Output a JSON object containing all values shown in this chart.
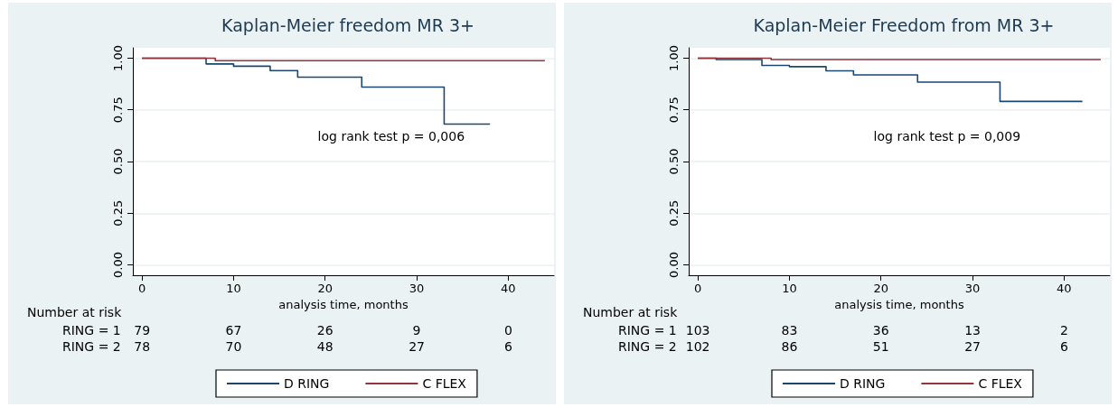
{
  "chart_data": [
    {
      "type": "step",
      "title": "Kaplan-Meier freedom MR 3+",
      "xlabel": "analysis time, months",
      "xlim": [
        -1,
        45
      ],
      "xticks": [
        0,
        10,
        20,
        30,
        40
      ],
      "ylim": [
        -0.05,
        1.05
      ],
      "yticks": [
        {
          "value": 0,
          "label": "0.00"
        },
        {
          "value": 0.25,
          "label": "0.25"
        },
        {
          "value": 0.5,
          "label": "0.50"
        },
        {
          "value": 0.75,
          "label": "0.75"
        },
        {
          "value": 1,
          "label": "1.00"
        }
      ],
      "grid": "y",
      "legend": "bottom",
      "marker": "none",
      "line_style": "solid",
      "series": [
        {
          "name": "D RING",
          "color": "#1a476f",
          "x": [
            0,
            7,
            10,
            14,
            17,
            24,
            33,
            38
          ],
          "values": [
            1,
            0.972,
            0.961,
            0.94,
            0.908,
            0.86,
            0.681,
            0.681
          ]
        },
        {
          "name": "C FLEX",
          "color": "#90353b",
          "x": [
            0,
            8,
            44
          ],
          "values": [
            1,
            0.988,
            0.988
          ]
        }
      ],
      "annotations": [
        "log rank test p = 0,006",
        "Number at risk",
        "RING = 1",
        "79",
        "67",
        "26",
        "9",
        "0",
        "RING = 2",
        "78",
        "70",
        "48",
        "27",
        "6"
      ]
    },
    {
      "type": "step",
      "title": "Kaplan-Meier Freedom from MR 3+",
      "xlabel": "analysis time, months",
      "xlim": [
        -1,
        45
      ],
      "xticks": [
        0,
        10,
        20,
        30,
        40
      ],
      "ylim": [
        -0.05,
        1.05
      ],
      "yticks": [
        {
          "value": 0,
          "label": "0.00"
        },
        {
          "value": 0.25,
          "label": "0.25"
        },
        {
          "value": 0.5,
          "label": "0.50"
        },
        {
          "value": 0.75,
          "label": "0.75"
        },
        {
          "value": 1,
          "label": "1.00"
        }
      ],
      "grid": "y",
      "legend": "bottom",
      "marker": "none",
      "line_style": "solid",
      "series": [
        {
          "name": "D RING",
          "color": "#1a476f",
          "x": [
            0,
            2,
            7,
            10,
            14,
            17,
            24,
            33,
            42
          ],
          "values": [
            1,
            0.993,
            0.965,
            0.959,
            0.939,
            0.919,
            0.884,
            0.791,
            0.791
          ]
        },
        {
          "name": "C FLEX",
          "color": "#90353b",
          "x": [
            0,
            8,
            44
          ],
          "values": [
            1,
            0.993,
            0.993
          ]
        }
      ],
      "annotations": [
        "log rank test p = 0,009",
        "Number at risk",
        "RING = 1",
        "103",
        "83",
        "36",
        "13",
        "2",
        "RING = 2",
        "102",
        "86",
        "51",
        "27",
        "6"
      ]
    }
  ]
}
